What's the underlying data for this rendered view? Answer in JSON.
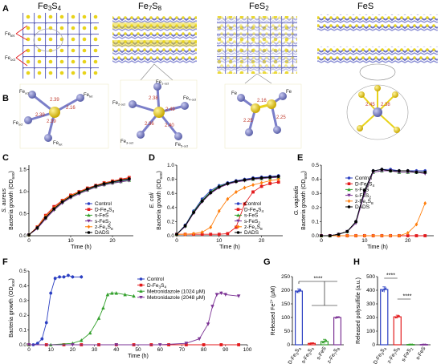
{
  "panels": {
    "A": "A",
    "B": "B",
    "C": "C",
    "D": "D",
    "E": "E",
    "F": "F",
    "G": "G",
    "H": "H"
  },
  "structures": {
    "titles": [
      "Fe3S4",
      "Fe7S8",
      "FeS2",
      "FeS"
    ],
    "fe3s4_labels": [
      "Fe",
      "Fe"
    ],
    "fe3s4_subs": [
      "tet",
      "oct"
    ],
    "bond_lengths_fe3s4": [
      "2.39",
      "2.16",
      "2.39",
      "2.39"
    ],
    "bond_lengths_fe7s8": [
      "2.38",
      "2.49",
      "2.36",
      "2.40"
    ],
    "bond_lengths_fes2": [
      "2.16",
      "2.25",
      "2.25"
    ],
    "bond_lengths_fes": [
      "2.45",
      "2.38"
    ],
    "fe_labels_fe7s8": [
      "Fe",
      "Fe",
      "Fe",
      "Fe",
      "Fe"
    ]
  },
  "colors": {
    "control": "#2b3fc2",
    "dfe3s4": "#e31a1c",
    "sfes": "#33a02c",
    "sfes2": "#7b3294",
    "zfe7s8": "#ff7f0e",
    "dads": "#000000",
    "fe_atom": "#7b7fc9",
    "s_atom": "#e8d31a"
  },
  "chart_data": [
    {
      "id": "C",
      "type": "line",
      "ylabel_species": "S. aureus",
      "ylabel": "Bacteria growth (OD600)",
      "xlabel": "Time (h)",
      "xlim": [
        0,
        25
      ],
      "ylim": [
        0,
        1.6
      ],
      "xticks": [
        "0",
        "10",
        "20"
      ],
      "yticks": [
        "0.0",
        "0.5",
        "1.0",
        "1.5"
      ],
      "x": [
        0,
        2,
        4,
        6,
        8,
        10,
        12,
        14,
        16,
        18,
        20,
        22,
        24
      ],
      "series": [
        {
          "name": "Control",
          "color_key": "control",
          "marker": "circle",
          "values": [
            0.02,
            0.18,
            0.42,
            0.62,
            0.78,
            0.9,
            0.98,
            1.05,
            1.12,
            1.17,
            1.21,
            1.25,
            1.28
          ]
        },
        {
          "name": "D-Fe3S4",
          "color_key": "dfe3s4",
          "marker": "square",
          "values": [
            0.02,
            0.2,
            0.46,
            0.66,
            0.8,
            0.92,
            1.0,
            1.08,
            1.14,
            1.2,
            1.24,
            1.28,
            1.32
          ]
        },
        {
          "name": "s-FeS",
          "color_key": "sfes",
          "marker": "triangle",
          "values": [
            0.02,
            0.17,
            0.4,
            0.6,
            0.76,
            0.88,
            0.97,
            1.04,
            1.11,
            1.16,
            1.2,
            1.23,
            1.26
          ]
        },
        {
          "name": "s-FeS2",
          "color_key": "sfes2",
          "marker": "tridown",
          "values": [
            0.02,
            0.16,
            0.38,
            0.58,
            0.74,
            0.86,
            0.95,
            1.03,
            1.1,
            1.15,
            1.19,
            1.22,
            1.25
          ]
        },
        {
          "name": "z-Fe7S8",
          "color_key": "zfe7s8",
          "marker": "diamond",
          "values": [
            0.02,
            0.19,
            0.44,
            0.63,
            0.79,
            0.91,
            0.99,
            1.07,
            1.13,
            1.19,
            1.23,
            1.27,
            1.3
          ]
        },
        {
          "name": "DADS",
          "color_key": "dads",
          "marker": "circle",
          "values": [
            0.02,
            0.18,
            0.41,
            0.61,
            0.77,
            0.89,
            0.98,
            1.06,
            1.13,
            1.18,
            1.22,
            1.26,
            1.29
          ]
        }
      ],
      "legend": [
        "Control",
        "D-Fe3S4",
        "s-FeS",
        "s-FeS2",
        "z-Fe7S8",
        "DADS"
      ]
    },
    {
      "id": "D",
      "type": "line",
      "ylabel_species": "E. coli",
      "ylabel": "Bacteria growth (OD600)",
      "xlabel": "Time (h)",
      "xlim": [
        0,
        25
      ],
      "ylim": [
        0,
        1.0
      ],
      "xticks": [
        "0",
        "10",
        "20"
      ],
      "yticks": [
        "0.0",
        "0.2",
        "0.4",
        "0.6",
        "0.8",
        "1.0"
      ],
      "x": [
        0,
        2,
        4,
        6,
        8,
        10,
        12,
        14,
        16,
        18,
        20,
        22,
        24
      ],
      "series": [
        {
          "name": "Control",
          "color_key": "control",
          "marker": "circle",
          "values": [
            0.02,
            0.15,
            0.35,
            0.52,
            0.64,
            0.71,
            0.75,
            0.78,
            0.8,
            0.82,
            0.83,
            0.84,
            0.85
          ]
        },
        {
          "name": "D-Fe3S4",
          "color_key": "dfe3s4",
          "marker": "square",
          "values": [
            0.02,
            0.02,
            0.02,
            0.02,
            0.02,
            0.02,
            0.03,
            0.12,
            0.45,
            0.62,
            0.7,
            0.74,
            0.76
          ]
        },
        {
          "name": "s-FeS",
          "color_key": "sfes",
          "marker": "triangle",
          "values": [
            0.02,
            0.14,
            0.34,
            0.5,
            0.62,
            0.7,
            0.74,
            0.77,
            0.79,
            0.8,
            0.81,
            0.82,
            0.83
          ]
        },
        {
          "name": "s-FeS2",
          "color_key": "sfes2",
          "marker": "tridown",
          "values": [
            0.02,
            0.13,
            0.32,
            0.48,
            0.6,
            0.68,
            0.73,
            0.76,
            0.78,
            0.8,
            0.81,
            0.82,
            0.83
          ]
        },
        {
          "name": "z-Fe7S8",
          "color_key": "zfe7s8",
          "marker": "diamond",
          "values": [
            0.02,
            0.02,
            0.03,
            0.05,
            0.12,
            0.35,
            0.52,
            0.62,
            0.68,
            0.72,
            0.75,
            0.78,
            0.8
          ]
        },
        {
          "name": "DADS",
          "color_key": "dads",
          "marker": "circle",
          "values": [
            0.02,
            0.14,
            0.33,
            0.49,
            0.61,
            0.69,
            0.74,
            0.77,
            0.79,
            0.81,
            0.82,
            0.83,
            0.84
          ]
        }
      ],
      "legend": [
        "Control",
        "D-Fe3S4",
        "s-FeS",
        "s-FeS2",
        "z-Fe7S8",
        "DADS"
      ]
    },
    {
      "id": "E",
      "type": "line",
      "ylabel_species": "G. vaginalis",
      "ylabel": "Bacteria growth (OD600)",
      "xlabel": "Time (h)",
      "xlim": [
        0,
        26
      ],
      "ylim": [
        0,
        0.5
      ],
      "xticks": [
        "0",
        "10",
        "20"
      ],
      "yticks": [
        "0.0",
        "0.1",
        "0.2",
        "0.3",
        "0.4",
        "0.5"
      ],
      "x": [
        0,
        2,
        4,
        6,
        8,
        10,
        12,
        14,
        16,
        18,
        20,
        22,
        24
      ],
      "series": [
        {
          "name": "Control",
          "color_key": "control",
          "marker": "circle",
          "values": [
            0.0,
            0.0,
            0.01,
            0.03,
            0.1,
            0.32,
            0.46,
            0.47,
            0.47,
            0.46,
            0.46,
            0.46,
            0.46
          ]
        },
        {
          "name": "D-Fe3S4",
          "color_key": "dfe3s4",
          "marker": "square",
          "values": [
            0.0,
            0.0,
            0.0,
            0.0,
            0.0,
            0.0,
            0.0,
            0.0,
            0.0,
            0.0,
            0.0,
            0.0,
            0.0
          ]
        },
        {
          "name": "s-FeS",
          "color_key": "sfes",
          "marker": "triangle",
          "values": [
            0.0,
            0.0,
            0.01,
            0.03,
            0.1,
            0.31,
            0.45,
            0.46,
            0.46,
            0.45,
            0.45,
            0.45,
            0.45
          ]
        },
        {
          "name": "s-FeS2",
          "color_key": "sfes2",
          "marker": "tridown",
          "values": [
            0.0,
            0.0,
            0.01,
            0.03,
            0.09,
            0.3,
            0.45,
            0.46,
            0.46,
            0.45,
            0.45,
            0.45,
            0.44
          ]
        },
        {
          "name": "z-Fe7S8",
          "color_key": "zfe7s8",
          "marker": "diamond",
          "values": [
            0.0,
            0.0,
            0.0,
            0.0,
            0.0,
            0.0,
            0.0,
            0.0,
            0.0,
            0.0,
            0.02,
            0.08,
            0.23
          ]
        },
        {
          "name": "DADS",
          "color_key": "dads",
          "marker": "circle",
          "values": [
            0.0,
            0.0,
            0.01,
            0.03,
            0.1,
            0.32,
            0.46,
            0.47,
            0.46,
            0.46,
            0.46,
            0.45,
            0.45
          ]
        }
      ],
      "legend": [
        "Control",
        "D-Fe3S4",
        "s-FeS",
        "s-FeS2",
        "z-Fe7S8",
        "DADS"
      ]
    },
    {
      "id": "F",
      "type": "line",
      "ylabel": "Bacteria growth (OD600)",
      "xlabel": "Time (h)",
      "xlim": [
        0,
        100
      ],
      "ylim": [
        0,
        0.5
      ],
      "xticks": [
        "0",
        "10",
        "20",
        "30",
        "40",
        "50",
        "60",
        "70",
        "80",
        "90",
        "100"
      ],
      "yticks": [
        "0.0",
        "0.1",
        "0.2",
        "0.3",
        "0.4",
        "0.5"
      ],
      "series": [
        {
          "name": "Control",
          "color_key": "control",
          "marker": "circle",
          "points": [
            [
              0,
              0
            ],
            [
              2,
              0
            ],
            [
              4,
              0.01
            ],
            [
              6,
              0.04
            ],
            [
              8,
              0.15
            ],
            [
              10,
              0.35
            ],
            [
              12,
              0.45
            ],
            [
              14,
              0.46
            ],
            [
              16,
              0.46
            ],
            [
              18,
              0.47
            ],
            [
              20,
              0.46
            ],
            [
              24,
              0.46
            ]
          ]
        },
        {
          "name": "D-Fe3S4",
          "color_key": "dfe3s4",
          "marker": "square",
          "points": [
            [
              0,
              0
            ],
            [
              8,
              0
            ],
            [
              16,
              0
            ],
            [
              24,
              0
            ],
            [
              32,
              0
            ],
            [
              40,
              0
            ],
            [
              48,
              0
            ],
            [
              56,
              0
            ],
            [
              64,
              0
            ],
            [
              72,
              0
            ],
            [
              80,
              0
            ],
            [
              88,
              0
            ],
            [
              96,
              0
            ]
          ]
        },
        {
          "name": "Metronidazole (1024 μM)",
          "color_key": "sfes",
          "marker": "triangle",
          "points": [
            [
              0,
              0
            ],
            [
              10,
              0
            ],
            [
              20,
              0.01
            ],
            [
              24,
              0.03
            ],
            [
              28,
              0.08
            ],
            [
              32,
              0.18
            ],
            [
              34,
              0.25
            ],
            [
              36,
              0.34
            ],
            [
              38,
              0.35
            ],
            [
              40,
              0.35
            ],
            [
              44,
              0.34
            ],
            [
              48,
              0.33
            ]
          ]
        },
        {
          "name": "Metronidazole (2048 μM)",
          "color_key": "sfes2",
          "marker": "tridown",
          "points": [
            [
              0,
              0
            ],
            [
              20,
              0
            ],
            [
              40,
              0
            ],
            [
              60,
              0
            ],
            [
              72,
              0.01
            ],
            [
              78,
              0.04
            ],
            [
              82,
              0.14
            ],
            [
              84,
              0.26
            ],
            [
              86,
              0.34
            ],
            [
              88,
              0.35
            ],
            [
              90,
              0.34
            ],
            [
              96,
              0.33
            ]
          ]
        }
      ],
      "legend": [
        "Control",
        "D-Fe3S4",
        "Metronidazole (1024 μM)",
        "Metronidazole (2048 μM)"
      ]
    },
    {
      "id": "G",
      "type": "bar",
      "ylabel": "Released Fe2+ (μM)",
      "categories": [
        "D-Fe3S4",
        "s-Fe3S4",
        "s-FeS",
        "z-Fe7S8"
      ],
      "values": [
        197,
        5,
        12,
        100
      ],
      "errors": [
        8,
        2,
        8,
        3
      ],
      "ylim": [
        0,
        250
      ],
      "yticks": [
        "0",
        "50",
        "100",
        "150",
        "200",
        "250"
      ],
      "color_keys": [
        "control",
        "dfe3s4",
        "sfes",
        "sfes2"
      ],
      "significance": "****"
    },
    {
      "id": "H",
      "type": "bar",
      "ylabel": "Released polysulfide (a.u.)",
      "categories": [
        "D-Fe3S4",
        "z-Fe7S8",
        "s-FeS2",
        "s-FeS"
      ],
      "values": [
        405,
        205,
        2,
        2
      ],
      "errors": [
        20,
        12,
        1,
        1
      ],
      "ylim": [
        0,
        500
      ],
      "yticks": [
        "0",
        "100",
        "200",
        "300",
        "400",
        "500"
      ],
      "color_keys": [
        "control",
        "dfe3s4",
        "sfes",
        "sfes2"
      ],
      "significance": [
        "****",
        "****"
      ]
    }
  ]
}
